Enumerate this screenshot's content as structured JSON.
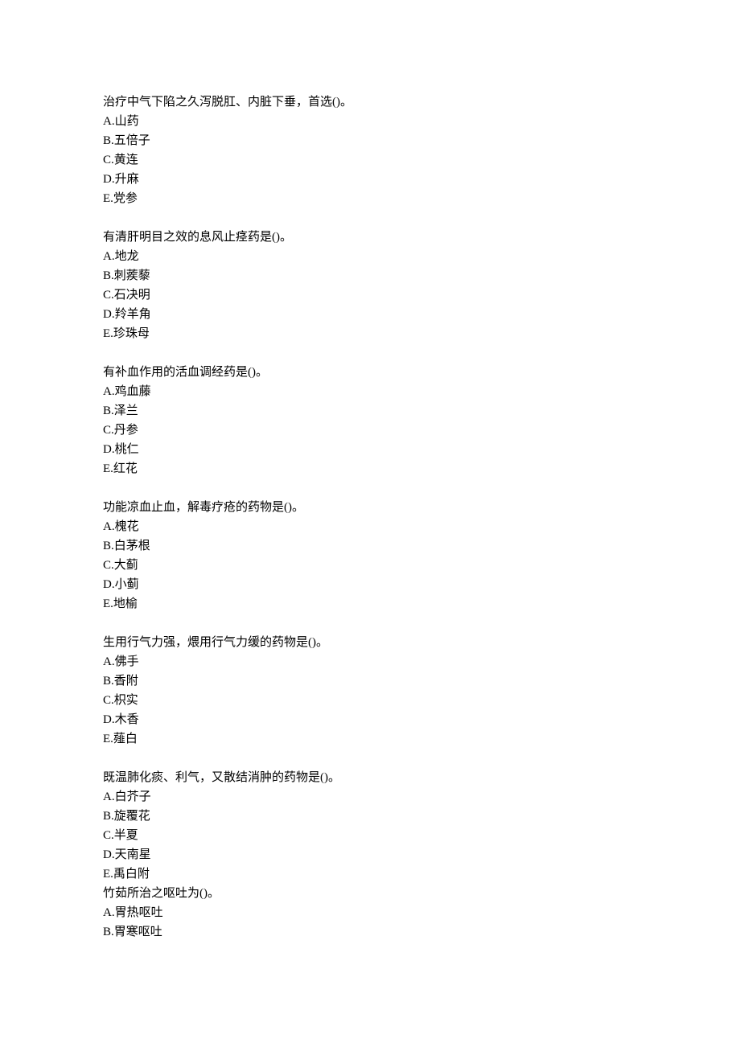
{
  "document": {
    "text_color": "#000000",
    "background_color": "#ffffff",
    "font_size": 15,
    "line_height": 24,
    "questions": [
      {
        "stem": "治疗中气下陷之久泻脱肛、内脏下垂，首选()。",
        "options": {
          "A": "A.山药",
          "B": "B.五倍子",
          "C": "C.黄连",
          "D": "D.升麻",
          "E": "E.党参"
        }
      },
      {
        "stem": "有清肝明目之效的息风止痉药是()。",
        "options": {
          "A": "A.地龙",
          "B": "B.刺蒺藜",
          "C": "C.石决明",
          "D": "D.羚羊角",
          "E": "E.珍珠母"
        }
      },
      {
        "stem": "有补血作用的活血调经药是()。",
        "options": {
          "A": "A.鸡血藤",
          "B": "B.泽兰",
          "C": "C.丹参",
          "D": "D.桃仁",
          "E": "E.红花"
        }
      },
      {
        "stem": "功能凉血止血，解毒疗疮的药物是()。",
        "options": {
          "A": "A.槐花",
          "B": "B.白茅根",
          "C": "C.大蓟",
          "D": "D.小蓟",
          "E": "E.地榆"
        }
      },
      {
        "stem": "生用行气力强，煨用行气力缓的药物是()。",
        "options": {
          "A": "A.佛手",
          "B": "B.香附",
          "C": "C.枳实",
          "D": "D.木香",
          "E": "E.薤白"
        }
      },
      {
        "stem": "既温肺化痰、利气，又散结消肿的药物是()。",
        "options": {
          "A": "A.白芥子",
          "B": "B.旋覆花",
          "C": "C.半夏",
          "D": "D.天南星",
          "E": "E.禹白附"
        }
      },
      {
        "stem": "竹茹所治之呕吐为()。",
        "options": {
          "A": "A.胃热呕吐",
          "B": "B.胃寒呕吐"
        }
      }
    ]
  }
}
